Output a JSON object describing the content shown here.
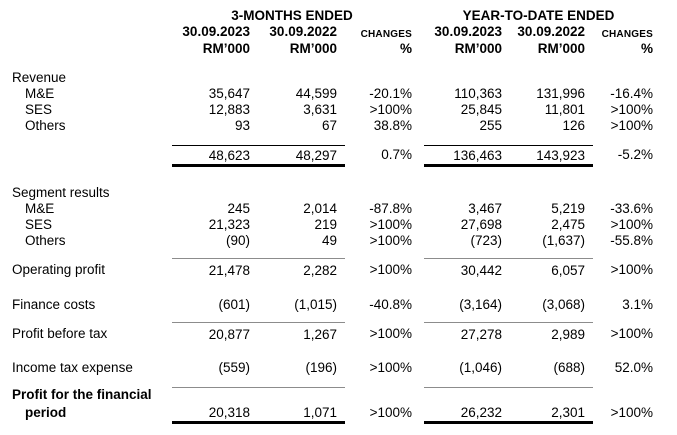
{
  "table": {
    "title_semantic": "Segmental quarterly results table",
    "header": {
      "period_groups": [
        {
          "title": "3-MONTHS ENDED"
        },
        {
          "title": "YEAR-TO-DATE ENDED"
        }
      ],
      "date_2023": "30.09.2023",
      "date_2022": "30.09.2022",
      "changes": "CHANGES",
      "unit": "RM’000",
      "percent": "%"
    },
    "rows": {
      "revenue_section": {
        "label": "Revenue"
      },
      "revenue_me": {
        "label": "M&E",
        "v": [
          "35,647",
          "44,599",
          "-20.1%",
          "110,363",
          "131,996",
          "-16.4%"
        ]
      },
      "revenue_ses": {
        "label": "SES",
        "v": [
          "12,883",
          "3,631",
          ">100%",
          "25,845",
          "11,801",
          ">100%"
        ]
      },
      "revenue_others": {
        "label": "Others",
        "v": [
          "93",
          "67",
          "38.8%",
          "255",
          "126",
          ">100%"
        ]
      },
      "revenue_total": {
        "v": [
          "48,623",
          "48,297",
          "0.7%",
          "136,463",
          "143,923",
          "-5.2%"
        ]
      },
      "segment_section": {
        "label": "Segment results"
      },
      "segment_me": {
        "label": "M&E",
        "v": [
          "245",
          "2,014",
          "-87.8%",
          "3,467",
          "5,219",
          "-33.6%"
        ]
      },
      "segment_ses": {
        "label": "SES",
        "v": [
          "21,323",
          "219",
          ">100%",
          "27,698",
          "2,475",
          ">100%"
        ]
      },
      "segment_others": {
        "label": "Others",
        "v": [
          "(90)",
          "49",
          ">100%",
          "(723)",
          "(1,637)",
          "-55.8%"
        ]
      },
      "operating_profit": {
        "label": "Operating profit",
        "v": [
          "21,478",
          "2,282",
          ">100%",
          "30,442",
          "6,057",
          ">100%"
        ]
      },
      "finance_costs": {
        "label": "Finance costs",
        "v": [
          "(601)",
          "(1,015)",
          "-40.8%",
          "(3,164)",
          "(3,068)",
          "3.1%"
        ]
      },
      "profit_before_tax": {
        "label": "Profit before tax",
        "v": [
          "20,877",
          "1,267",
          ">100%",
          "27,278",
          "2,989",
          ">100%"
        ]
      },
      "income_tax": {
        "label": "Income tax expense",
        "v": [
          "(559)",
          "(196)",
          ">100%",
          "(1,046)",
          "(688)",
          "52.0%"
        ]
      },
      "net_profit": {
        "label_line1": "Profit for the financial",
        "label_line2": "period",
        "v": [
          "20,318",
          "1,071",
          ">100%",
          "26,232",
          "2,301",
          ">100%"
        ]
      }
    }
  },
  "colors": {
    "text": "#000000",
    "background": "#ffffff",
    "total_rule": "#000000",
    "subtotal_rule": "#8c8c8c",
    "closing_rule": "#000000"
  }
}
